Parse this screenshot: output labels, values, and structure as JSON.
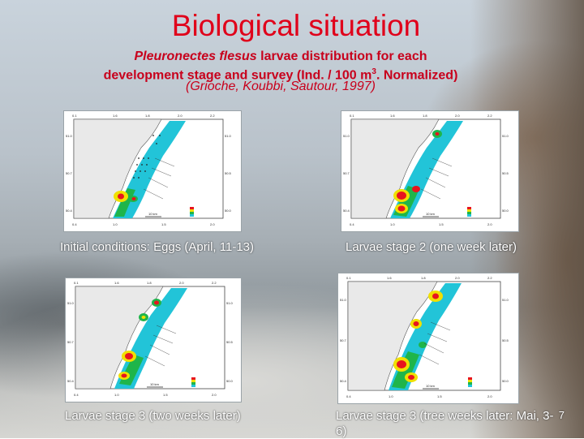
{
  "slide": {
    "title": "Biological situation",
    "subtitle_species": "Pleuronectes flesus",
    "subtitle_rest_1": " larvae distribution for each",
    "subtitle_line2_a": "development stage and survey  (Ind. / 100 m",
    "subtitle_sup": "3",
    "subtitle_line2_b": ". Normalized)",
    "citation": "(Grioche, Koubbi, Sautour, 1997)",
    "page_number": "7"
  },
  "panels": [
    {
      "caption": "Initial conditions: Eggs (April, 11-13)"
    },
    {
      "caption": "Larvae stage 2  (one week later)"
    },
    {
      "caption": "Larvae stage 3  (two weeks later)"
    },
    {
      "caption": "Larvae stage 3  (tree weeks later: Mai, 3-6)"
    }
  ],
  "map_labels": {
    "tick_top": [
      "0.1",
      "1.6",
      "1.8",
      "2.0",
      "2.2"
    ],
    "tick_left": [
      "51.0",
      "50.7",
      "50.4"
    ],
    "tick_right": [
      "51.0",
      "50.5",
      "50.0"
    ],
    "tick_bottom": [
      "0.4",
      "1.0",
      "1.5",
      "2.0"
    ],
    "scale_label": "10 km"
  },
  "colors": {
    "title": "#e0001a",
    "subtitle": "#c8001c",
    "water_low": "#22c4d8",
    "water_mid": "#1fb54a",
    "water_high": "#f0e000",
    "water_peak": "#e8141e",
    "land": "#e9e9e9"
  }
}
